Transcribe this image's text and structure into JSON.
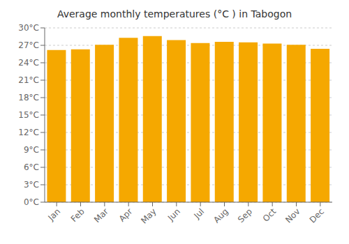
{
  "chart_data": {
    "type": "bar",
    "title": "Average monthly temperatures (°C ) in Tabogon",
    "categories": [
      "Jan",
      "Feb",
      "Mar",
      "Apr",
      "May",
      "Jun",
      "Jul",
      "Aug",
      "Sep",
      "Oct",
      "Nov",
      "Dec"
    ],
    "values": [
      26.2,
      26.3,
      27.1,
      28.3,
      28.6,
      27.9,
      27.4,
      27.6,
      27.5,
      27.3,
      27.1,
      26.4
    ],
    "color": "#F5A800",
    "ylim": [
      0,
      30
    ],
    "yticks": [
      {
        "value": 0,
        "label": "0°C"
      },
      {
        "value": 3,
        "label": "3°C"
      },
      {
        "value": 6,
        "label": "6°C"
      },
      {
        "value": 9,
        "label": "9°C"
      },
      {
        "value": 12,
        "label": "12°C"
      },
      {
        "value": 15,
        "label": "15°C"
      },
      {
        "value": 18,
        "label": "18°C"
      },
      {
        "value": 21,
        "label": "21°C"
      },
      {
        "value": 24,
        "label": "24°C"
      },
      {
        "value": 27,
        "label": "27°C"
      },
      {
        "value": 30,
        "label": "30°C"
      }
    ],
    "grid": true
  }
}
